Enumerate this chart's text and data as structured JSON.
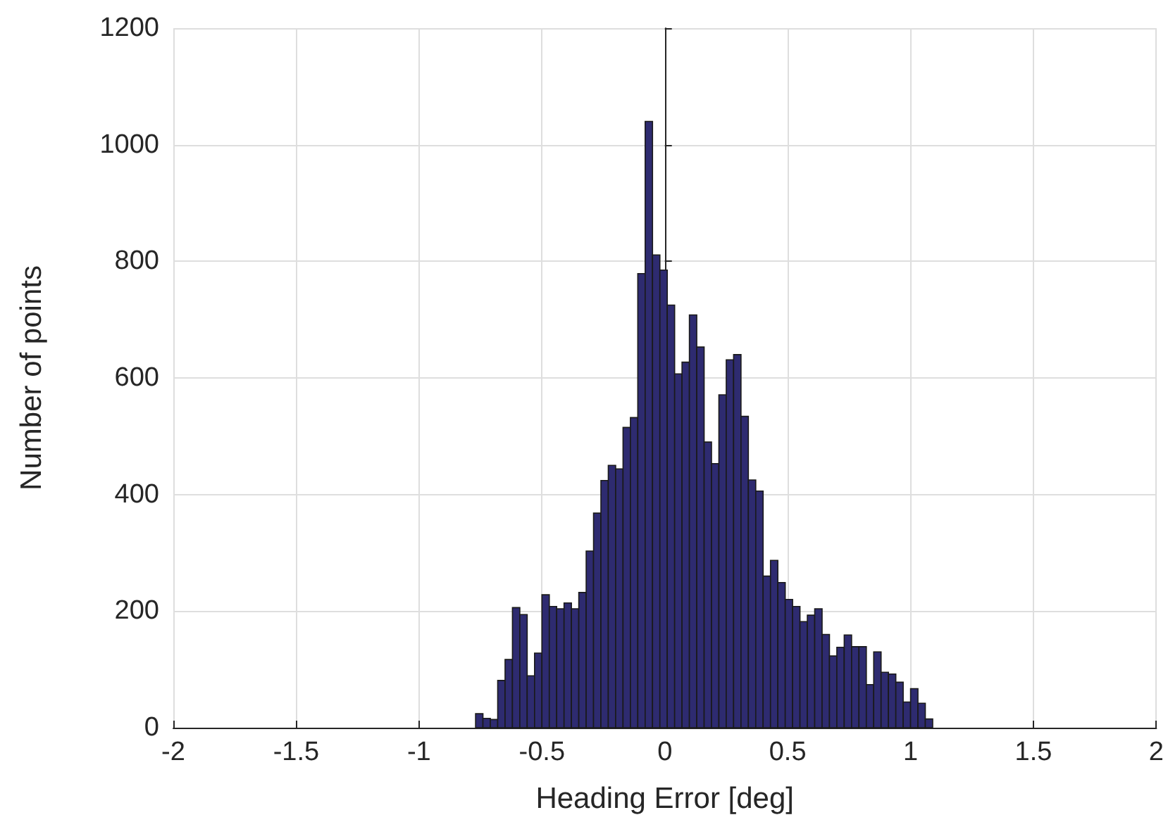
{
  "chart_data": {
    "type": "histogram",
    "xlabel": "Heading Error [deg]",
    "ylabel": "Number of points",
    "bins": [
      -0.77,
      -0.74,
      -0.71,
      -0.68,
      -0.65,
      -0.62,
      -0.59,
      -0.56,
      -0.53,
      -0.5,
      -0.47,
      -0.44,
      -0.41,
      -0.38,
      -0.35,
      -0.32,
      -0.29,
      -0.26,
      -0.23,
      -0.2,
      -0.17,
      -0.14,
      -0.11,
      -0.08,
      -0.05,
      -0.02,
      0.01,
      0.04,
      0.07,
      0.1,
      0.13,
      0.16,
      0.19,
      0.22,
      0.25,
      0.28,
      0.31,
      0.34,
      0.37,
      0.4,
      0.43,
      0.46,
      0.49,
      0.52,
      0.55,
      0.58,
      0.61,
      0.64,
      0.67,
      0.7,
      0.73,
      0.76,
      0.79,
      0.82,
      0.85,
      0.88,
      0.91,
      0.94,
      0.97,
      1.0,
      1.03,
      1.06,
      1.09
    ],
    "values": [
      24,
      16,
      14,
      81,
      117,
      206,
      194,
      89,
      128,
      228,
      208,
      204,
      214,
      204,
      232,
      303,
      368,
      424,
      450,
      444,
      515,
      532,
      779,
      1040,
      811,
      785,
      725,
      607,
      627,
      708,
      653,
      490,
      453,
      571,
      631,
      640,
      534,
      425,
      406,
      260,
      287,
      249,
      220,
      208,
      182,
      193,
      204,
      160,
      123,
      138,
      159,
      139,
      139,
      74,
      130,
      95,
      92,
      78,
      44,
      67,
      42,
      15
    ],
    "color": "#2e2b70",
    "xlim": [
      -2,
      2
    ],
    "xticks": [
      -2,
      -1.5,
      -1,
      -0.5,
      0,
      0.5,
      1,
      1.5,
      2
    ],
    "ylim": [
      0,
      1200
    ],
    "yticks": [
      0,
      200,
      400,
      600,
      800,
      1000,
      1200
    ],
    "grid": true
  }
}
